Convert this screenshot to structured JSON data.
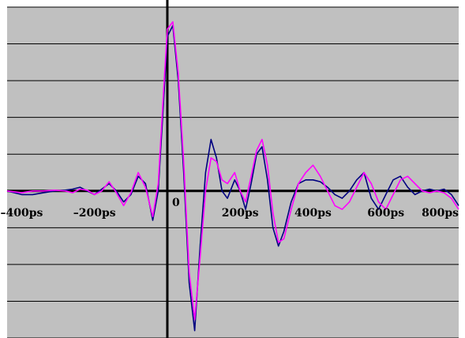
{
  "chart_data": {
    "type": "line",
    "title": "",
    "xlabel": "",
    "ylabel": "",
    "xlim": [
      -440,
      800
    ],
    "ylim": [
      -4.0,
      5.0
    ],
    "grid": true,
    "background": "#c0c0c0",
    "grid_color": "#000000",
    "x_ticks": [
      {
        "value": -400,
        "label": "–400ps"
      },
      {
        "value": -200,
        "label": "–200ps"
      },
      {
        "value": 0,
        "label": "0"
      },
      {
        "value": 200,
        "label": "200ps"
      },
      {
        "value": 400,
        "label": "400ps"
      },
      {
        "value": 600,
        "label": "600ps"
      },
      {
        "value": 800,
        "label": "800ps"
      }
    ],
    "series": [
      {
        "color": "#000080",
        "x": [
          -440,
          -400,
          -370,
          -340,
          -310,
          -280,
          -260,
          -240,
          -220,
          -200,
          -180,
          -160,
          -140,
          -120,
          -100,
          -80,
          -60,
          -40,
          -25,
          -10,
          0,
          15,
          30,
          45,
          60,
          75,
          90,
          105,
          120,
          135,
          150,
          165,
          185,
          200,
          215,
          230,
          245,
          260,
          275,
          290,
          305,
          320,
          340,
          360,
          380,
          400,
          420,
          440,
          460,
          480,
          500,
          520,
          540,
          560,
          580,
          600,
          620,
          640,
          660,
          680,
          700,
          720,
          740,
          760,
          780,
          800
        ],
        "y": [
          0.0,
          -0.1,
          -0.1,
          -0.05,
          0.0,
          0.02,
          0.05,
          0.1,
          0.0,
          -0.1,
          0.05,
          0.2,
          0.0,
          -0.3,
          -0.1,
          0.4,
          0.2,
          -0.8,
          0.0,
          2.5,
          4.2,
          4.5,
          3.0,
          0.5,
          -2.5,
          -3.8,
          -1.5,
          0.5,
          1.4,
          0.9,
          0.0,
          -0.2,
          0.3,
          0.0,
          -0.5,
          0.2,
          1.0,
          1.2,
          0.3,
          -1.0,
          -1.5,
          -1.1,
          -0.3,
          0.2,
          0.3,
          0.3,
          0.25,
          0.1,
          -0.1,
          -0.2,
          0.0,
          0.3,
          0.5,
          -0.2,
          -0.5,
          -0.1,
          0.3,
          0.4,
          0.1,
          -0.1,
          0.0,
          0.05,
          0.0,
          0.05,
          -0.1,
          -0.4
        ]
      },
      {
        "color": "#ff00ff",
        "x": [
          -440,
          -400,
          -370,
          -340,
          -310,
          -280,
          -260,
          -240,
          -220,
          -200,
          -180,
          -160,
          -140,
          -120,
          -100,
          -80,
          -60,
          -40,
          -25,
          -10,
          0,
          15,
          30,
          45,
          60,
          75,
          90,
          105,
          120,
          135,
          150,
          165,
          185,
          200,
          215,
          230,
          245,
          260,
          275,
          290,
          305,
          320,
          340,
          360,
          380,
          400,
          420,
          440,
          460,
          480,
          500,
          520,
          540,
          560,
          580,
          600,
          620,
          640,
          660,
          680,
          700,
          720,
          740,
          760,
          780,
          800
        ],
        "y": [
          0.0,
          -0.05,
          0.0,
          0.0,
          0.02,
          0.0,
          -0.05,
          0.05,
          0.02,
          -0.1,
          0.0,
          0.25,
          -0.05,
          -0.4,
          -0.05,
          0.5,
          0.1,
          -0.7,
          0.2,
          2.8,
          4.4,
          4.6,
          3.2,
          0.8,
          -2.2,
          -3.5,
          -1.8,
          0.0,
          0.9,
          0.8,
          0.3,
          0.2,
          0.5,
          0.0,
          -0.3,
          0.4,
          1.1,
          1.4,
          0.7,
          -0.6,
          -1.4,
          -1.3,
          -0.5,
          0.2,
          0.5,
          0.7,
          0.4,
          0.0,
          -0.4,
          -0.5,
          -0.3,
          0.1,
          0.5,
          0.2,
          -0.3,
          -0.5,
          -0.1,
          0.3,
          0.4,
          0.2,
          0.0,
          -0.05,
          0.0,
          -0.05,
          -0.2,
          -0.5
        ]
      }
    ]
  }
}
